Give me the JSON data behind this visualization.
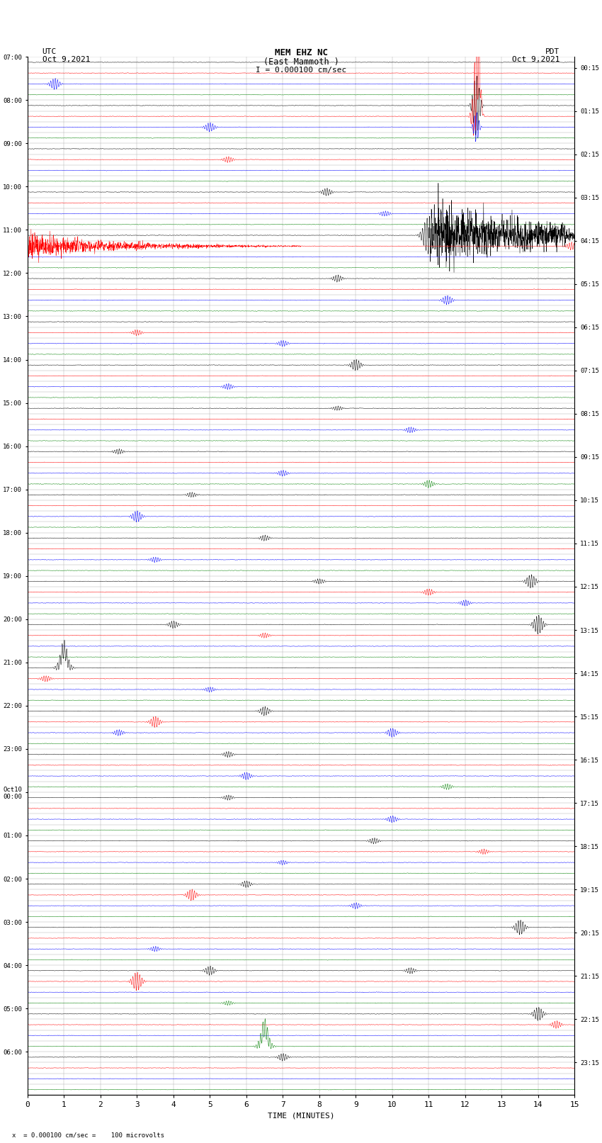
{
  "title_line1": "MEM EHZ NC",
  "title_line2": "(East Mammoth )",
  "scale_label": "I = 0.000100 cm/sec",
  "left_date": "UTC\nOct 9,2021",
  "right_date": "PDT\nOct 9,2021",
  "xlabel": "TIME (MINUTES)",
  "bottom_note": "x  = 0.000100 cm/sec =    100 microvolts",
  "bg_color": "#ffffff",
  "grid_color": "#aaaaaa",
  "trace_colors_cycle": [
    "black",
    "red",
    "blue",
    "green"
  ],
  "total_rows": 96,
  "left_major_labels": [
    "07:00",
    "08:00",
    "09:00",
    "10:00",
    "11:00",
    "12:00",
    "13:00",
    "14:00",
    "15:00",
    "16:00",
    "17:00",
    "18:00",
    "19:00",
    "20:00",
    "21:00",
    "22:00",
    "23:00",
    "Oct10\n00:00",
    "01:00",
    "02:00",
    "03:00",
    "04:00",
    "05:00",
    "06:00"
  ],
  "right_labels": [
    "00:15",
    "01:15",
    "02:15",
    "03:15",
    "04:15",
    "05:15",
    "06:15",
    "07:15",
    "08:15",
    "09:15",
    "10:15",
    "11:15",
    "12:15",
    "13:15",
    "14:15",
    "15:15",
    "16:15",
    "17:15",
    "18:15",
    "19:15",
    "20:15",
    "21:15",
    "22:15",
    "23:15"
  ],
  "noise_scale": 0.06,
  "title_fontsize": 9,
  "tick_fontsize": 6.5,
  "xlabel_fontsize": 8
}
